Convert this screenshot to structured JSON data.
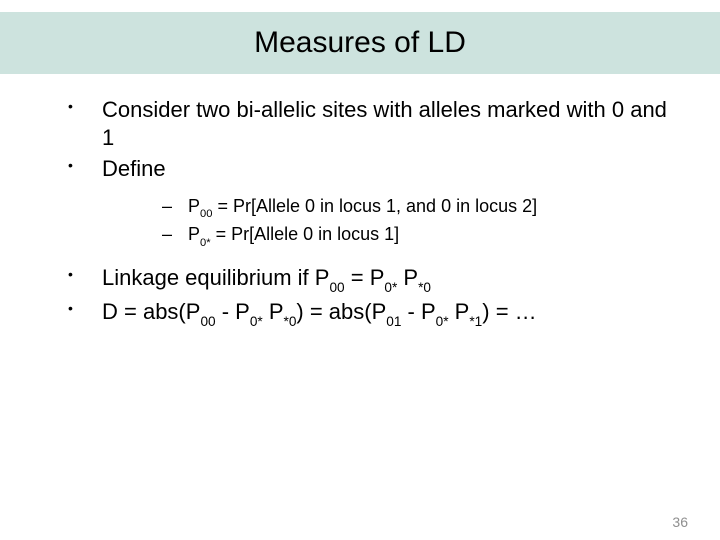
{
  "colors": {
    "title_band_bg": "#cde3de",
    "text": "#000000",
    "page_num": "#8f8f8f",
    "background": "#ffffff"
  },
  "typography": {
    "title_fontsize": 30,
    "bullet_fontsize": 22,
    "sub_bullet_fontsize": 18,
    "pagenum_fontsize": 14,
    "font_family": "Arial"
  },
  "slide": {
    "title": "Measures of LD",
    "page_number": "36",
    "bullets": {
      "b1": "Consider two bi-allelic sites with alleles marked with 0 and 1",
      "b2": "Define",
      "sub1_parts": {
        "a": "P",
        "sub_a": "00",
        "b": " = Pr[Allele 0 in locus 1, and 0 in locus 2]"
      },
      "sub2_parts": {
        "a": "P",
        "sub_a": "0*",
        "b": " = Pr[Allele 0 in locus 1]"
      },
      "b3_parts": {
        "t1": "Linkage equilibrium if P",
        "s1": "00",
        "t2": " = P",
        "s2": "0*",
        "t3": " P",
        "s3": "*0"
      },
      "b4_parts": {
        "t1": "D = abs(P",
        "s1": "00",
        "t2": " - P",
        "s2": "0*",
        "t3": " P",
        "s3": "*0",
        "t4": ") = abs(P",
        "s4": "01",
        "t5": " - P",
        "s5": "0*",
        "t6": " P",
        "s6": "*1",
        "t7": ") = …"
      }
    }
  }
}
